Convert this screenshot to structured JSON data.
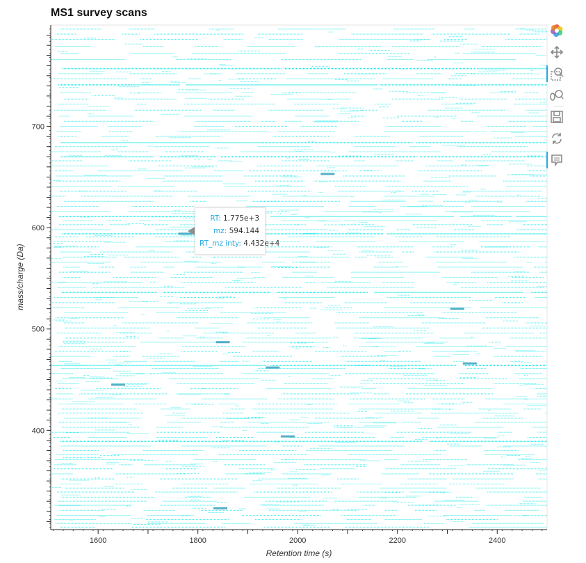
{
  "chart_data": {
    "type": "heatmap",
    "title": "MS1 survey scans",
    "xlabel": "Retention time (s)",
    "ylabel": "mass/charge (Da)",
    "xlim": [
      1505,
      2500
    ],
    "ylim": [
      302,
      800
    ],
    "x_ticks": [
      1600,
      1700,
      1800,
      1900,
      2000,
      2100,
      2200,
      2300,
      2400
    ],
    "x_tick_labels": [
      "1600",
      "1800",
      "2000",
      "2200",
      "2400"
    ],
    "x_labeled_ticks": [
      1600,
      1800,
      2000,
      2200,
      2400
    ],
    "y_ticks": [
      310,
      320,
      330,
      340,
      350,
      360,
      370,
      380,
      390,
      400,
      410,
      420,
      430,
      440,
      450,
      460,
      470,
      480,
      490,
      500,
      510,
      520,
      530,
      540,
      550,
      560,
      570,
      580,
      590,
      600,
      610,
      620,
      630,
      640,
      650,
      660,
      670,
      680,
      690,
      700,
      710,
      720,
      730,
      740,
      750,
      760,
      770,
      780,
      790
    ],
    "y_tick_labels": [
      "400",
      "500",
      "600",
      "700"
    ],
    "y_labeled_ticks": [
      400,
      500,
      600,
      700
    ],
    "color": "#00e5e5",
    "dense_color": "#2a9bb8",
    "horizontal_streaks_mz": [
      304.5,
      308,
      312,
      316,
      321,
      326,
      330,
      334,
      339,
      343,
      347,
      352,
      357,
      362,
      366,
      371,
      376,
      380,
      384.5,
      389,
      393,
      398,
      403,
      408,
      412,
      417,
      421,
      426,
      431,
      436,
      441,
      446,
      451,
      456,
      461,
      464,
      468,
      473,
      478,
      483,
      487,
      491,
      496,
      501,
      506,
      511,
      516,
      521,
      526,
      531,
      536,
      541,
      546,
      551,
      556,
      561,
      566,
      571,
      576,
      581,
      586,
      591,
      594,
      598,
      603,
      607,
      611,
      616,
      621,
      626,
      631,
      636,
      641,
      646,
      651,
      656,
      661,
      666,
      670,
      675,
      680,
      684,
      690,
      695,
      700,
      705,
      710,
      716,
      722,
      727,
      733,
      741,
      747,
      752,
      757,
      766,
      772,
      779,
      786,
      791,
      796
    ],
    "strong_streaks_mz": [
      741,
      757,
      684,
      670,
      611,
      594,
      543,
      536,
      464,
      392,
      389,
      340,
      336
    ],
    "dense_spots": [
      [
        1775,
        594.1
      ],
      [
        2060,
        653
      ],
      [
        1850,
        487
      ],
      [
        1950,
        462
      ],
      [
        2320,
        520
      ],
      [
        1980,
        394
      ],
      [
        1640,
        445
      ],
      [
        1845,
        323
      ],
      [
        2345,
        466
      ]
    ],
    "tooltip": {
      "rt_label": "RT:",
      "rt_value": "1.775e+3",
      "mz_label": "mz:",
      "mz_value": "594.144",
      "inty_label": "RT_mz inty:",
      "inty_value": "4.432e+4"
    }
  },
  "toolbar": {
    "tools": [
      "bokeh-logo-icon",
      "pan-icon",
      "box-zoom-icon",
      "wheel-zoom-icon",
      "save-icon",
      "reset-icon",
      "hover-icon"
    ]
  }
}
